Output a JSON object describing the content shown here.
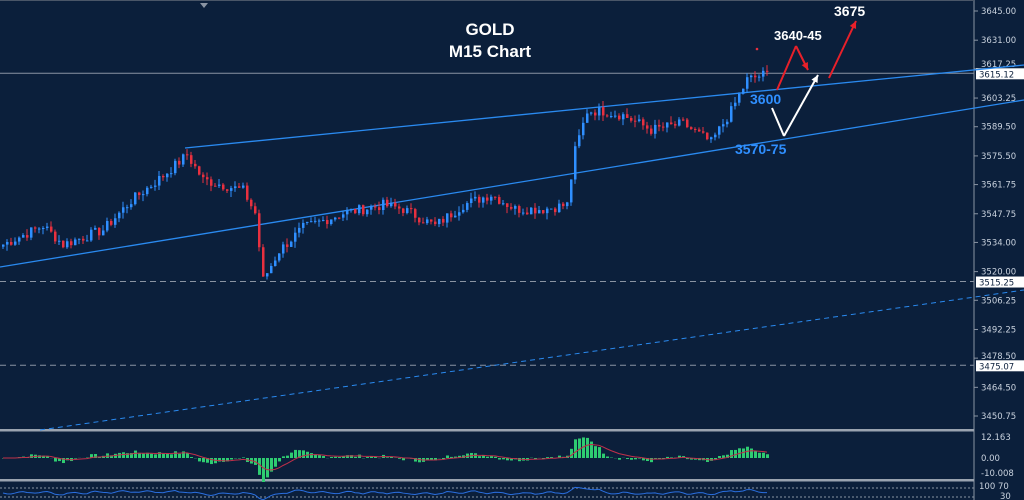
{
  "header": {
    "symbol": "GOLD",
    "timeframe": "M15 Chart"
  },
  "annotations": {
    "target_high": "3675",
    "resistance_zone": "3640-45",
    "pivot": "3600",
    "support_zone": "3570-75"
  },
  "colors": {
    "background": "#0b1f3b",
    "bull": "#2f8fff",
    "bear": "#e8303f",
    "trendline": "#2a8af0",
    "macd_hist": "#2ecc71",
    "macd_signal": "#c0304a",
    "rsi": "#2a6fe0",
    "arrow_red": "#e8202a",
    "arrow_white": "#ffffff"
  },
  "chart_data": {
    "type": "candlestick",
    "title": "GOLD M15 Chart",
    "price_axis": {
      "ticks": [
        "3645.00",
        "3631.00",
        "3617.25",
        "3603.25",
        "3589.50",
        "3575.50",
        "3561.75",
        "3547.75",
        "3534.00",
        "3520.00",
        "3506.25",
        "3492.25",
        "3478.50",
        "3464.50",
        "3450.75"
      ],
      "ylim": [
        3450.75,
        3645.0
      ],
      "markers": [
        {
          "label": "3615.12",
          "value": 3615.12,
          "style": "solid"
        },
        {
          "label": "3515.25",
          "value": 3515.25,
          "style": "dashed"
        },
        {
          "label": "3475.07",
          "value": 3475.07,
          "style": "dashed"
        }
      ]
    },
    "price_path_keypoints": [
      [
        0,
        3533
      ],
      [
        10,
        3542
      ],
      [
        15,
        3533
      ],
      [
        25,
        3540
      ],
      [
        32,
        3554
      ],
      [
        40,
        3566
      ],
      [
        46,
        3576
      ],
      [
        50,
        3564
      ],
      [
        60,
        3559
      ],
      [
        63,
        3548
      ],
      [
        65,
        3516
      ],
      [
        69,
        3530
      ],
      [
        75,
        3541
      ],
      [
        85,
        3548
      ],
      [
        95,
        3552
      ],
      [
        100,
        3550
      ],
      [
        108,
        3542
      ],
      [
        115,
        3552
      ],
      [
        122,
        3557
      ],
      [
        128,
        3550
      ],
      [
        135,
        3550
      ],
      [
        141,
        3552
      ],
      [
        143,
        3578
      ],
      [
        146,
        3597
      ],
      [
        150,
        3597
      ],
      [
        155,
        3595
      ],
      [
        162,
        3588
      ],
      [
        170,
        3591
      ],
      [
        177,
        3582
      ],
      [
        182,
        3597
      ],
      [
        186,
        3612
      ],
      [
        191,
        3615
      ]
    ],
    "macd": {
      "ticks": [
        "12.163",
        "0.00",
        "-10.008"
      ],
      "ylim": [
        -10.008,
        12.163
      ]
    },
    "rsi": {
      "ticks": [
        "100",
        "70",
        "30"
      ]
    }
  }
}
